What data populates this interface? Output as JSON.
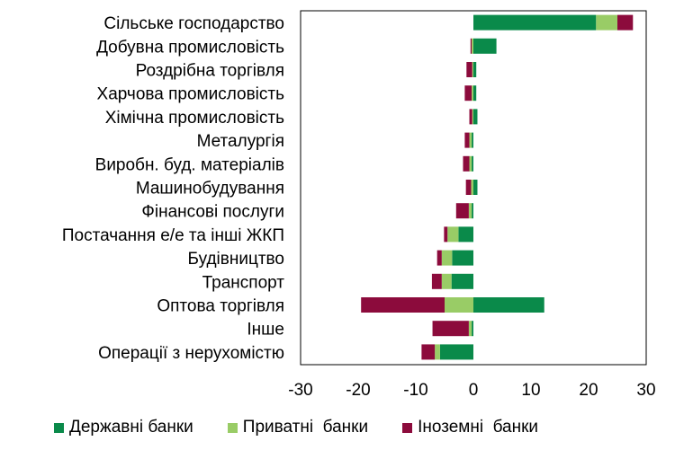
{
  "chart_data": {
    "type": "bar",
    "orientation": "horizontal",
    "stacked": true,
    "categories": [
      "Сільське господарство",
      "Добувна промисловість",
      "Роздрібна торгівля",
      "Харчова промисловість",
      "Хімічна промисловість",
      "Металургія",
      "Виробн. буд. матеріалів",
      "Машинобудування",
      "Фінансові послуги",
      "Постачання е/е та інші ЖКП",
      "Будівництво",
      "Транспорт",
      "Оптова торгівля",
      "Інше",
      "Операції з нерухомістю"
    ],
    "series": [
      {
        "name": "Державні банки",
        "color": "#0a8a4a",
        "values": [
          21.3,
          4.0,
          0.5,
          0.5,
          0.7,
          -0.3,
          -0.3,
          0.7,
          -0.3,
          -2.6,
          -3.7,
          -3.8,
          12.3,
          -0.3,
          -5.8
        ]
      },
      {
        "name": "Приватні  банки",
        "color": "#99cc66",
        "values": [
          3.7,
          -0.3,
          -0.2,
          -0.3,
          -0.2,
          -0.4,
          -0.4,
          -0.4,
          -0.5,
          -1.9,
          -1.8,
          -1.7,
          -5.0,
          -0.5,
          -0.9
        ]
      },
      {
        "name": "Іноземні  банки",
        "color": "#8c0b3c",
        "values": [
          2.7,
          -0.2,
          -1.0,
          -1.2,
          -0.5,
          -0.8,
          -1.1,
          -0.9,
          -2.2,
          -0.6,
          -0.8,
          -1.7,
          -14.5,
          -6.3,
          -2.3
        ]
      }
    ],
    "xlim": [
      -30,
      30
    ],
    "xticks": [
      -30,
      -20,
      -10,
      0,
      10,
      20,
      30
    ],
    "title": "",
    "xlabel": "",
    "ylabel": "",
    "grid": false,
    "legend_position": "bottom"
  }
}
